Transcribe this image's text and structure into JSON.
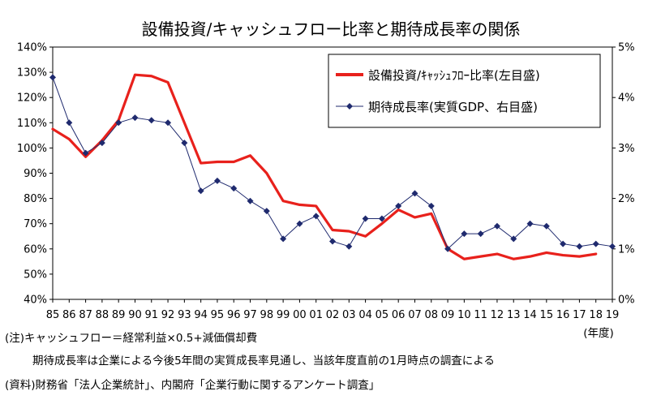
{
  "chart_data": {
    "type": "line",
    "title": "設備投資/キャッシュフロー比率と期待成長率の関係",
    "x_categories": [
      "85",
      "86",
      "87",
      "88",
      "89",
      "90",
      "91",
      "92",
      "93",
      "94",
      "95",
      "96",
      "97",
      "98",
      "99",
      "00",
      "01",
      "02",
      "03",
      "04",
      "05",
      "06",
      "07",
      "08",
      "09",
      "10",
      "11",
      "12",
      "13",
      "14",
      "15",
      "16",
      "17",
      "18",
      "19"
    ],
    "xlabel": "(年度)",
    "y_left": {
      "min": 40,
      "max": 140,
      "step": 10,
      "tick_labels": [
        "40%",
        "50%",
        "60%",
        "70%",
        "80%",
        "90%",
        "100%",
        "110%",
        "120%",
        "130%",
        "140%"
      ]
    },
    "y_right": {
      "min": 0,
      "max": 5,
      "step": 1,
      "tick_labels": [
        "0%",
        "1%",
        "2%",
        "3%",
        "4%",
        "5%"
      ]
    },
    "series": [
      {
        "name": "設備投資/ｷｬｯｼｭﾌﾛｰ比率(左目盛)",
        "axis": "left",
        "color": "#e8211c",
        "values": [
          107.5,
          103.5,
          96.5,
          103,
          111,
          129,
          128.5,
          126,
          110,
          94,
          94.5,
          94.5,
          97,
          90,
          79,
          77.5,
          77,
          67.5,
          67,
          65,
          70,
          75.5,
          72.5,
          74,
          60,
          56,
          57,
          58,
          56,
          57,
          58.5,
          57.5,
          57,
          58,
          null
        ]
      },
      {
        "name": "期待成長率(実質GDP、右目盛)",
        "axis": "right",
        "color": "#1f2a6e",
        "values": [
          4.4,
          3.5,
          2.9,
          3.1,
          3.5,
          3.6,
          3.55,
          3.5,
          3.1,
          2.15,
          2.35,
          2.2,
          1.95,
          1.75,
          1.2,
          1.5,
          1.65,
          1.15,
          1.05,
          1.6,
          1.6,
          1.85,
          2.1,
          1.85,
          1.0,
          1.3,
          1.3,
          1.45,
          1.2,
          1.5,
          1.45,
          1.1,
          1.05,
          1.1,
          1.05
        ]
      }
    ]
  },
  "notes": {
    "line1": "(注)キャッシュフロー＝経常利益×0.5+減価償却費",
    "line2": "期待成長率は企業による今後5年間の実質成長率見通し、当該年度直前の1月時点の調査による",
    "line3": "(資料)財務省「法人企業統計」、内閣府「企業行動に関するアンケート調査」"
  }
}
